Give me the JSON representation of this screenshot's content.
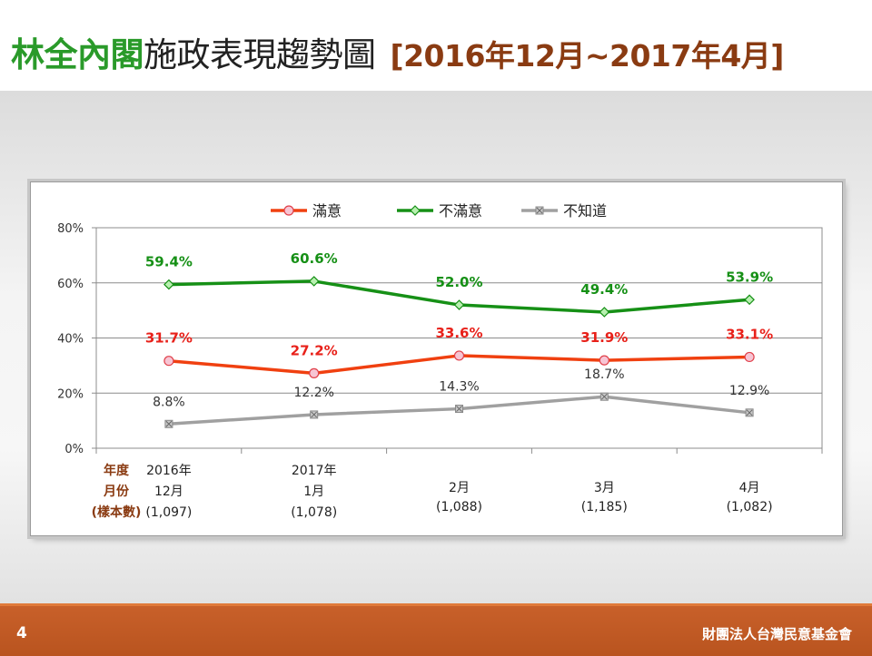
{
  "slide": {
    "title_green": "林全內閣",
    "title_black": "施政表現趨勢圖",
    "title_range": "[2016年12月~2017年4月]",
    "page_number": "4",
    "organization": "財團法人台灣民意基金會"
  },
  "chart_data": {
    "type": "line",
    "title": "",
    "xlabel": "",
    "ylabel": "",
    "ylim": [
      0,
      80
    ],
    "y_ticks": [
      "0%",
      "20%",
      "40%",
      "60%",
      "80%"
    ],
    "y_tick_values": [
      0,
      20,
      40,
      60,
      80
    ],
    "grid": "y-major",
    "legend_position": "top",
    "row_labels": [
      "年度",
      "月份",
      "(樣本數)"
    ],
    "categories": [
      {
        "year": "2016年",
        "month": "12月",
        "sample": "(1,097)"
      },
      {
        "year": "2017年",
        "month": "1月",
        "sample": "(1,078)"
      },
      {
        "year": "",
        "month": "2月",
        "sample": "(1,088)"
      },
      {
        "year": "",
        "month": "3月",
        "sample": "(1,185)"
      },
      {
        "year": "",
        "month": "4月",
        "sample": "(1,082)"
      }
    ],
    "series": [
      {
        "name": "滿意",
        "color": "#f04010",
        "marker": "circle",
        "label_color": "#e8211a",
        "values": [
          31.7,
          27.2,
          33.6,
          31.9,
          33.1
        ],
        "labels": [
          "31.7%",
          "27.2%",
          "33.6%",
          "31.9%",
          "33.1%"
        ]
      },
      {
        "name": "不滿意",
        "color": "#169016",
        "marker": "diamond",
        "label_color": "#169016",
        "values": [
          59.4,
          60.6,
          52.0,
          49.4,
          53.9
        ],
        "labels": [
          "59.4%",
          "60.6%",
          "52.0%",
          "49.4%",
          "53.9%"
        ]
      },
      {
        "name": "不知道",
        "color": "#a0a0a0",
        "marker": "square-x",
        "label_color": "#333333",
        "values": [
          8.8,
          12.2,
          14.3,
          18.7,
          12.9
        ],
        "labels": [
          "8.8%",
          "12.2%",
          "14.3%",
          "18.7%",
          "12.9%"
        ]
      }
    ]
  }
}
